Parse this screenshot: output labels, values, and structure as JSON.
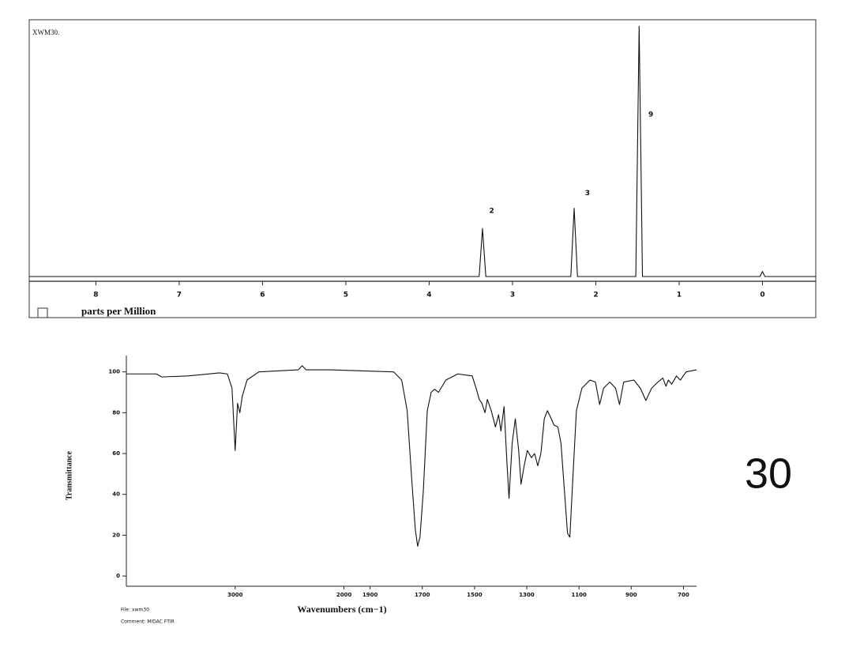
{
  "chart_data": [
    {
      "type": "line",
      "title": "XWM30.",
      "xlabel": "parts per Million",
      "x": [
        8.8,
        3.4,
        3.36,
        3.32,
        2.3,
        2.26,
        2.22,
        1.52,
        1.48,
        1.44,
        0.03,
        0,
        -0.03,
        -0.64
      ],
      "values": [
        0,
        0,
        19,
        0,
        0,
        27,
        0,
        0,
        99,
        0,
        0,
        2,
        0,
        0
      ],
      "color": "#111111",
      "xlim": [
        8.8,
        -0.64
      ],
      "xticks": [
        8,
        7,
        6,
        5,
        4,
        3,
        2,
        1,
        0
      ],
      "ylim": [
        0,
        100
      ],
      "annotations": [
        {
          "text": "2",
          "x": 3.25,
          "y": 26
        },
        {
          "text": "3",
          "x": 2.1,
          "y": 33
        },
        {
          "text": "9",
          "x": 1.34,
          "y": 64
        }
      ]
    },
    {
      "type": "line",
      "xlabel": "Wavenumbers (cm−1)",
      "ylabel": "Transmittance",
      "x": [
        4000,
        3725,
        3674,
        3435,
        3145,
        3072,
        3029,
        3000,
        2978,
        2957,
        2935,
        2891,
        2783,
        2420,
        2384,
        2348,
        2130,
        1810,
        1779,
        1758,
        1742,
        1727,
        1718,
        1709,
        1696,
        1681,
        1666,
        1653,
        1638,
        1610,
        1564,
        1509,
        1494,
        1482,
        1472,
        1460,
        1451,
        1436,
        1420,
        1408,
        1399,
        1387,
        1377,
        1368,
        1356,
        1344,
        1331,
        1322,
        1310,
        1298,
        1282,
        1270,
        1258,
        1246,
        1233,
        1221,
        1206,
        1196,
        1181,
        1169,
        1156,
        1144,
        1135,
        1126,
        1110,
        1089,
        1058,
        1037,
        1021,
        1006,
        982,
        960,
        945,
        929,
        890,
        865,
        844,
        822,
        798,
        779,
        767,
        758,
        745,
        727,
        712,
        690,
        650
      ],
      "values": [
        99,
        99,
        97.5,
        98,
        99.5,
        99,
        92,
        61.5,
        84.6,
        80,
        88,
        96,
        100,
        101,
        103,
        101,
        101,
        100,
        96,
        81,
        50,
        23,
        14.6,
        19,
        42,
        81,
        90,
        91.5,
        90,
        96,
        99,
        98,
        92,
        86.5,
        84.6,
        80,
        86.5,
        81,
        73,
        79,
        71,
        83,
        58,
        38,
        65,
        77,
        61.5,
        45,
        54,
        61.5,
        58,
        60,
        54,
        60,
        77,
        81,
        77,
        74,
        73,
        65,
        42,
        21,
        19,
        42,
        81,
        92,
        96,
        95,
        84,
        92,
        95,
        92,
        84,
        95,
        96,
        92,
        86,
        92,
        95,
        97,
        93,
        96,
        94,
        98,
        96,
        100,
        101
      ],
      "color": "#111111",
      "xlim": [
        4000,
        650
      ],
      "xscale": "split",
      "xsplit": 2000,
      "xsplit_ratio": 2.4,
      "xticks": [
        3000,
        2000,
        1900,
        1700,
        1500,
        1300,
        1100,
        900,
        700
      ],
      "ylim": [
        -5,
        108
      ],
      "yticks": [
        0,
        20,
        40,
        60,
        80,
        100
      ],
      "footnotes": [
        "File: xwm30",
        "Comment: MIDAC FTIR"
      ]
    }
  ],
  "sample_label": "30"
}
